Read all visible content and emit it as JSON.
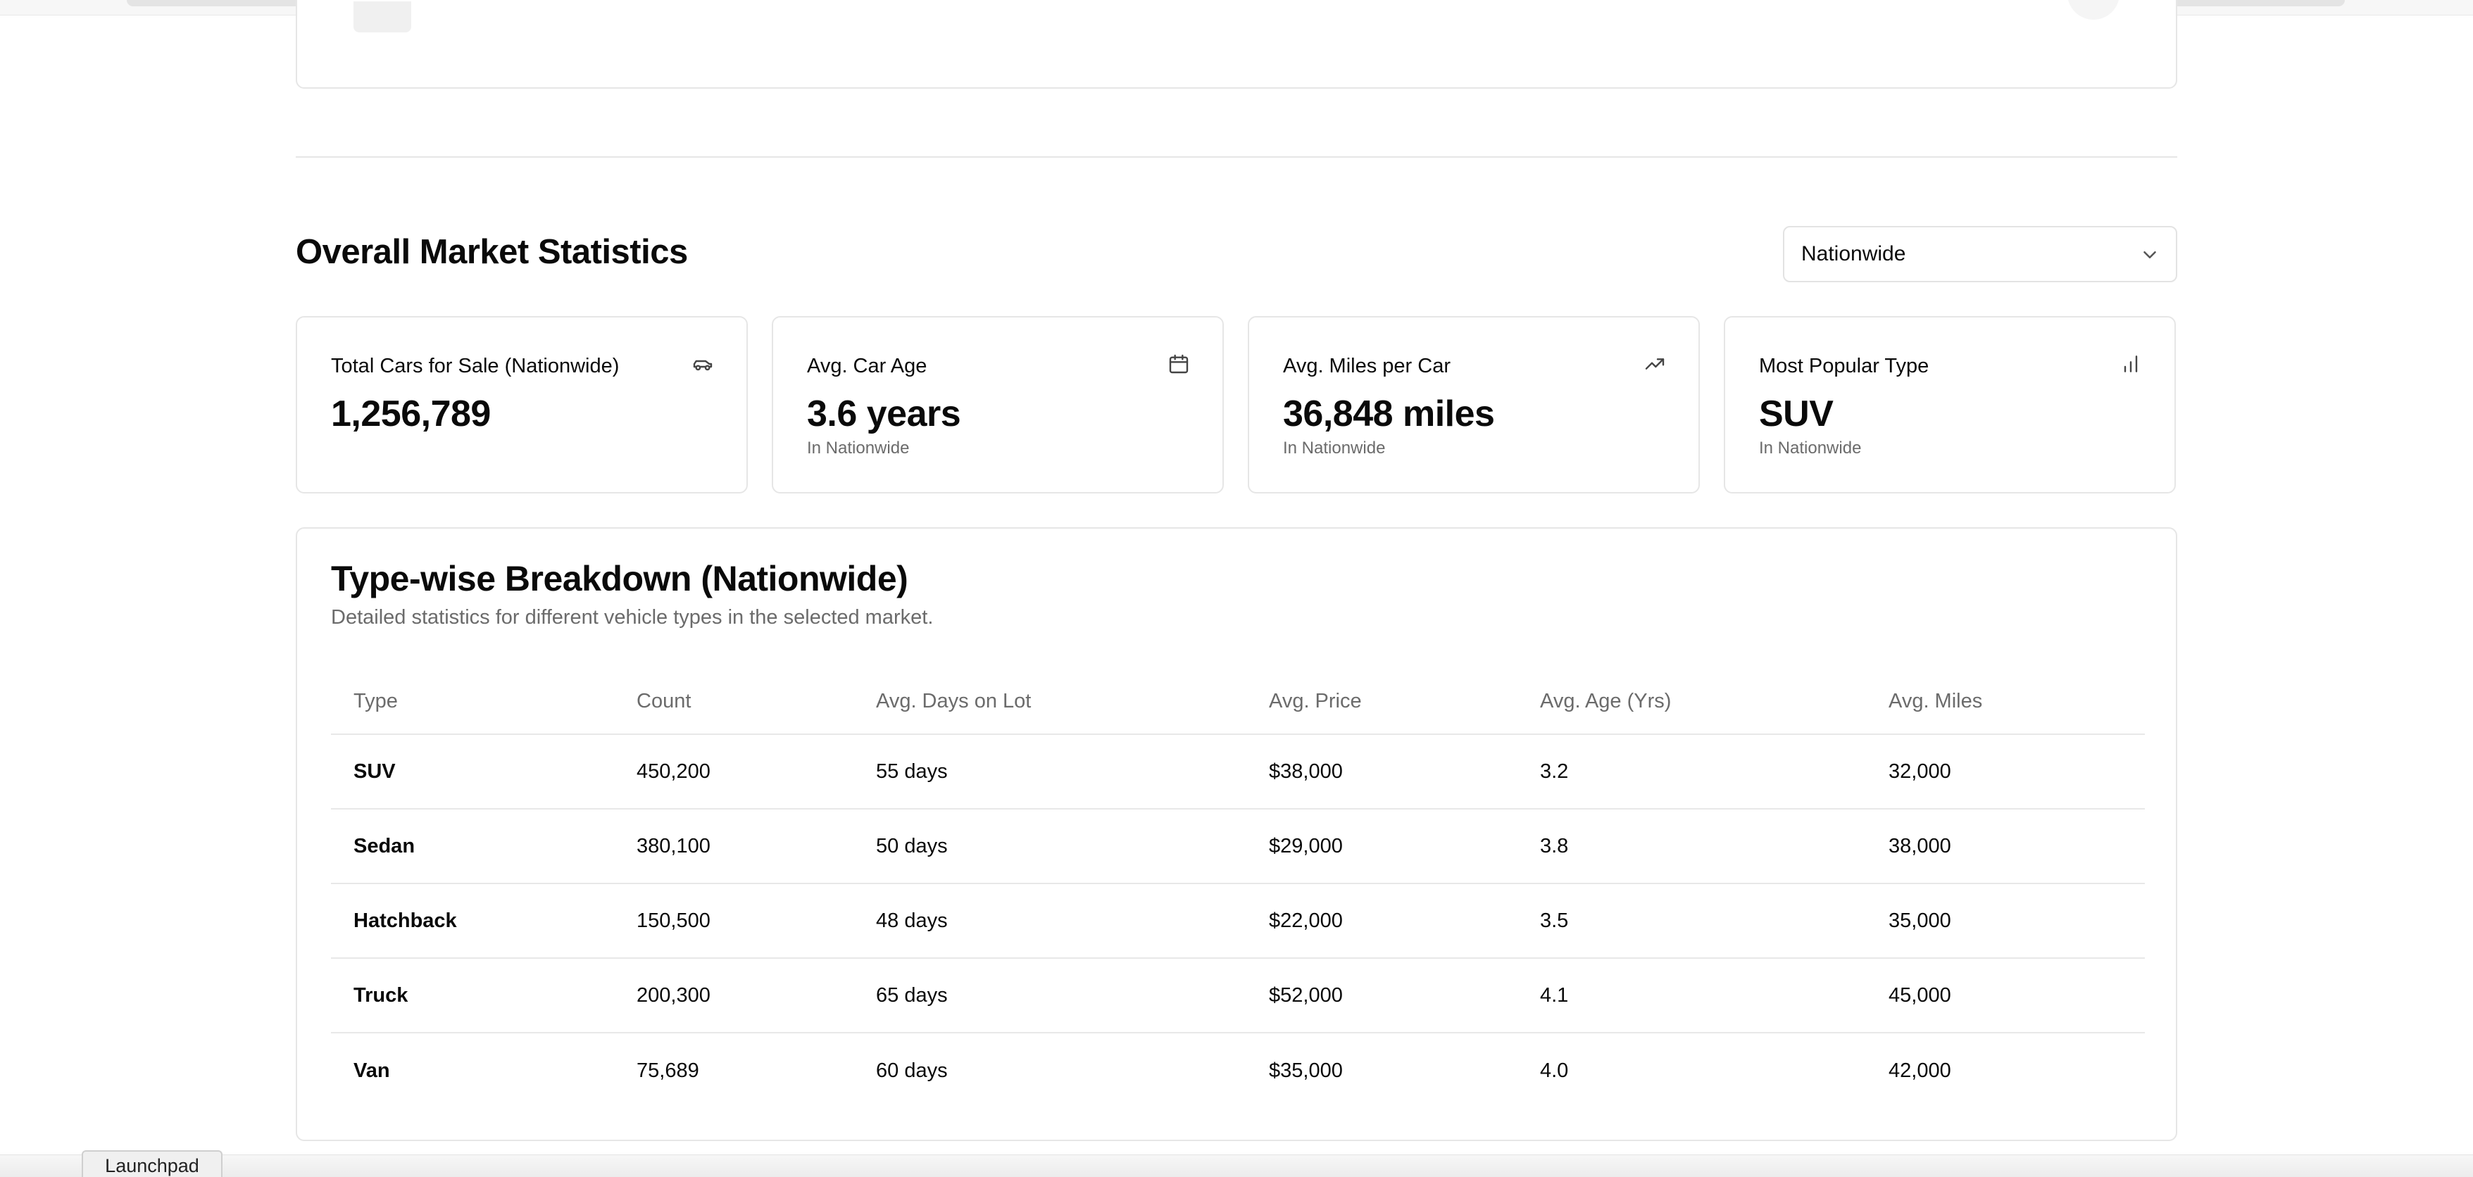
{
  "section": {
    "title": "Overall Market Statistics",
    "market_select": {
      "value": "Nationwide"
    }
  },
  "stats": [
    {
      "label": "Total Cars for Sale (Nationwide)",
      "value": "1,256,789",
      "sub": "",
      "icon": "car-icon"
    },
    {
      "label": "Avg. Car Age",
      "value": "3.6 years",
      "sub": "In Nationwide",
      "icon": "calendar-icon"
    },
    {
      "label": "Avg. Miles per Car",
      "value": "36,848 miles",
      "sub": "In Nationwide",
      "icon": "trending-up-icon"
    },
    {
      "label": "Most Popular Type",
      "value": "SUV",
      "sub": "In Nationwide",
      "icon": "bar-chart-icon"
    }
  ],
  "breakdown": {
    "title": "Type-wise Breakdown (Nationwide)",
    "subtitle": "Detailed statistics for different vehicle types in the selected market.",
    "columns": [
      "Type",
      "Count",
      "Avg. Days on Lot",
      "Avg. Price",
      "Avg. Age (Yrs)",
      "Avg. Miles"
    ],
    "rows": [
      [
        "SUV",
        "450,200",
        "55 days",
        "$38,000",
        "3.2",
        "32,000"
      ],
      [
        "Sedan",
        "380,100",
        "50 days",
        "$29,000",
        "3.8",
        "38,000"
      ],
      [
        "Hatchback",
        "150,500",
        "48 days",
        "$22,000",
        "3.5",
        "35,000"
      ],
      [
        "Truck",
        "200,300",
        "65 days",
        "$52,000",
        "4.1",
        "45,000"
      ],
      [
        "Van",
        "75,689",
        "60 days",
        "$35,000",
        "4.0",
        "42,000"
      ]
    ]
  },
  "launchpad": {
    "label": "Launchpad"
  }
}
